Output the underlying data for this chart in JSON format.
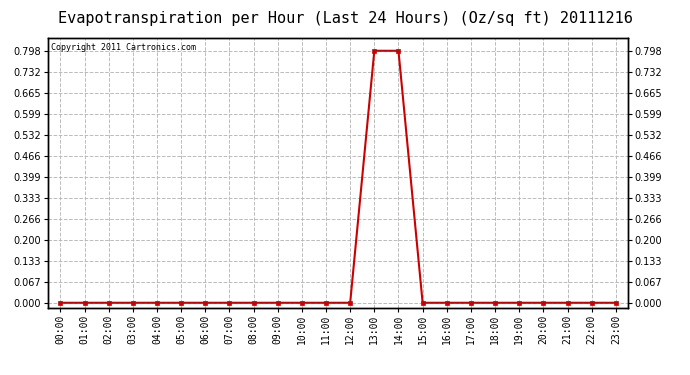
{
  "title": "Evapotranspiration per Hour (Last 24 Hours) (Oz/sq ft) 20111216",
  "copyright": "Copyright 2011 Cartronics.com",
  "x_labels": [
    "00:00",
    "01:00",
    "02:00",
    "03:00",
    "04:00",
    "05:00",
    "06:00",
    "07:00",
    "08:00",
    "09:00",
    "10:00",
    "11:00",
    "12:00",
    "13:00",
    "14:00",
    "15:00",
    "16:00",
    "17:00",
    "18:00",
    "19:00",
    "20:00",
    "21:00",
    "22:00",
    "23:00"
  ],
  "hours": [
    0,
    1,
    2,
    3,
    4,
    5,
    6,
    7,
    8,
    9,
    10,
    11,
    12,
    13,
    14,
    15,
    16,
    17,
    18,
    19,
    20,
    21,
    22,
    23
  ],
  "values": [
    0,
    0,
    0,
    0,
    0,
    0,
    0,
    0,
    0,
    0,
    0,
    0,
    0,
    0.798,
    0.798,
    0,
    0,
    0,
    0,
    0,
    0,
    0,
    0,
    0
  ],
  "line_color": "#cc0000",
  "marker": "s",
  "marker_size": 2.5,
  "marker_color": "#cc0000",
  "bg_color": "#ffffff",
  "plot_bg_color": "#ffffff",
  "grid_color": "#bbbbbb",
  "grid_style": "--",
  "yticks": [
    0.0,
    0.067,
    0.133,
    0.2,
    0.266,
    0.333,
    0.399,
    0.466,
    0.532,
    0.599,
    0.665,
    0.732,
    0.798
  ],
  "ylim": [
    -0.015,
    0.84
  ],
  "title_fontsize": 11,
  "copyright_fontsize": 6,
  "tick_fontsize": 7,
  "border_color": "#000000"
}
